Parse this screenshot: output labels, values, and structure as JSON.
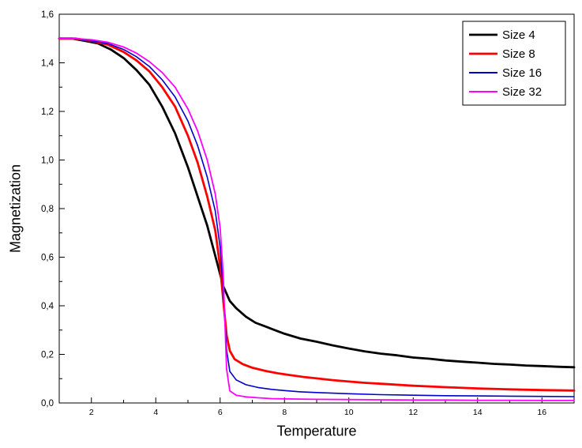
{
  "figure": {
    "background": "#ffffff"
  },
  "chart_data": {
    "type": "line",
    "title": "",
    "xlabel": "Temperature",
    "ylabel": "Magnetization",
    "xlim": [
      1,
      17
    ],
    "ylim": [
      0,
      1.6
    ],
    "grid": false,
    "x_major_ticks": [
      2,
      4,
      6,
      8,
      10,
      12,
      14,
      16
    ],
    "x_minor_ticks": [
      3,
      5,
      7,
      9,
      11,
      13,
      15
    ],
    "y_major_ticks": [
      {
        "value": 0.0,
        "label": "0,0"
      },
      {
        "value": 0.2,
        "label": "0,2"
      },
      {
        "value": 0.4,
        "label": "0,4"
      },
      {
        "value": 0.6,
        "label": "0,6"
      },
      {
        "value": 0.8,
        "label": "0,8"
      },
      {
        "value": 1.0,
        "label": "1,0"
      },
      {
        "value": 1.2,
        "label": "1,2"
      },
      {
        "value": 1.4,
        "label": "1,4"
      },
      {
        "value": 1.6,
        "label": "1,6"
      }
    ],
    "y_minor_ticks": [
      0.1,
      0.3,
      0.5,
      0.7,
      0.9,
      1.1,
      1.3,
      1.5
    ],
    "legend": {
      "position": "top-right",
      "border_color": "#000000",
      "background": "#ffffff"
    },
    "series": [
      {
        "name": "Size 4",
        "color": "#000000",
        "line_width": 2.8,
        "x": [
          1.0,
          1.4,
          1.8,
          2.2,
          2.6,
          3.0,
          3.4,
          3.8,
          4.2,
          4.6,
          5.0,
          5.3,
          5.6,
          5.9,
          6.1,
          6.3,
          6.5,
          6.8,
          7.1,
          7.4,
          7.7,
          8.0,
          8.5,
          9.0,
          9.5,
          10.0,
          10.5,
          11.0,
          11.5,
          12.0,
          12.5,
          13.0,
          13.5,
          14.0,
          14.5,
          15.0,
          15.5,
          16.0,
          16.5,
          17.0
        ],
        "y": [
          1.5,
          1.5,
          1.49,
          1.48,
          1.455,
          1.42,
          1.37,
          1.31,
          1.22,
          1.11,
          0.97,
          0.85,
          0.73,
          0.58,
          0.48,
          0.42,
          0.39,
          0.355,
          0.33,
          0.315,
          0.3,
          0.285,
          0.265,
          0.252,
          0.237,
          0.224,
          0.212,
          0.203,
          0.196,
          0.187,
          0.182,
          0.175,
          0.17,
          0.166,
          0.161,
          0.158,
          0.154,
          0.152,
          0.149,
          0.147
        ]
      },
      {
        "name": "Size 8",
        "color": "#ff0000",
        "line_width": 2.8,
        "x": [
          1.0,
          1.5,
          2.0,
          2.5,
          3.0,
          3.4,
          3.8,
          4.2,
          4.6,
          5.0,
          5.3,
          5.6,
          5.85,
          6.0,
          6.1,
          6.2,
          6.3,
          6.45,
          6.7,
          7.0,
          7.4,
          7.8,
          8.2,
          8.6,
          9.0,
          9.5,
          10.0,
          10.5,
          11.0,
          12.0,
          13.0,
          14.0,
          15.0,
          16.0,
          17.0
        ],
        "y": [
          1.5,
          1.5,
          1.49,
          1.475,
          1.445,
          1.41,
          1.365,
          1.3,
          1.22,
          1.1,
          0.99,
          0.85,
          0.71,
          0.56,
          0.42,
          0.28,
          0.215,
          0.18,
          0.16,
          0.145,
          0.132,
          0.122,
          0.114,
          0.107,
          0.101,
          0.094,
          0.088,
          0.083,
          0.079,
          0.071,
          0.065,
          0.06,
          0.056,
          0.053,
          0.051
        ]
      },
      {
        "name": "Size 16",
        "color": "#0000cc",
        "line_width": 1.6,
        "x": [
          1.0,
          1.5,
          2.0,
          2.5,
          3.0,
          3.4,
          3.8,
          4.2,
          4.6,
          5.0,
          5.3,
          5.6,
          5.85,
          6.0,
          6.1,
          6.2,
          6.3,
          6.5,
          6.8,
          7.2,
          7.6,
          8.0,
          8.5,
          9.0,
          10.0,
          11.0,
          12.0,
          13.0,
          14.0,
          15.0,
          16.0,
          17.0
        ],
        "y": [
          1.5,
          1.5,
          1.49,
          1.48,
          1.455,
          1.425,
          1.385,
          1.33,
          1.26,
          1.16,
          1.06,
          0.93,
          0.79,
          0.64,
          0.46,
          0.22,
          0.13,
          0.095,
          0.075,
          0.063,
          0.056,
          0.051,
          0.046,
          0.043,
          0.038,
          0.034,
          0.032,
          0.03,
          0.029,
          0.028,
          0.027,
          0.026
        ]
      },
      {
        "name": "Size 32",
        "color": "#ff00ff",
        "line_width": 1.8,
        "x": [
          1.0,
          1.5,
          2.0,
          2.5,
          3.0,
          3.4,
          3.8,
          4.2,
          4.6,
          5.0,
          5.3,
          5.6,
          5.85,
          6.0,
          6.1,
          6.2,
          6.3,
          6.5,
          6.8,
          7.2,
          7.6,
          8.0,
          9.0,
          10.0,
          11.0,
          12.0,
          13.0,
          14.0,
          15.0,
          16.0,
          17.0
        ],
        "y": [
          1.5,
          1.5,
          1.495,
          1.485,
          1.465,
          1.44,
          1.405,
          1.36,
          1.3,
          1.21,
          1.12,
          1.0,
          0.86,
          0.72,
          0.52,
          0.14,
          0.05,
          0.032,
          0.025,
          0.021,
          0.018,
          0.017,
          0.015,
          0.014,
          0.013,
          0.012,
          0.012,
          0.011,
          0.011,
          0.01,
          0.01
        ]
      }
    ]
  }
}
